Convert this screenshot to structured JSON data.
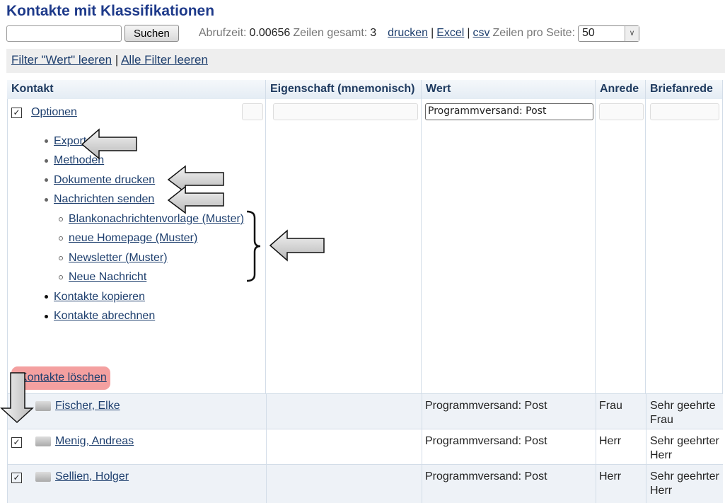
{
  "title": "Kontakte mit Klassifikationen",
  "toolbar": {
    "search_value": "",
    "search_button": "Suchen",
    "fetch_label": "Abrufzeit:",
    "fetch_value": "0.00656",
    "rows_label": "Zeilen gesamt:",
    "rows_value": "3",
    "print": "drucken",
    "excel": "Excel",
    "csv": "csv",
    "per_page_label": "Zeilen pro Seite:",
    "per_page_value": "50"
  },
  "filters": {
    "clear_value": "Filter \"Wert\" leeren",
    "sep": "|",
    "clear_all": "Alle Filter leeren"
  },
  "columns": [
    "Kontakt",
    "Eigenschaft (mnemonisch)",
    "Wert",
    "Anrede",
    "Briefanrede"
  ],
  "filter_inputs": {
    "wert": "Programmversand: Post"
  },
  "options": {
    "label": "Optionen",
    "items": [
      "Export",
      "Methoden",
      "Dokumente drucken",
      "Nachrichten senden"
    ],
    "sub_items": [
      "Blankonachrichtenvorlage (Muster)",
      "neue Homepage (Muster)",
      "Newsletter (Muster)",
      "Neue Nachricht"
    ],
    "items2": [
      "Kontakte kopieren",
      "Kontakte abrechnen"
    ],
    "delete": "Kontakte löschen"
  },
  "rows": [
    {
      "name": "Fischer, Elke",
      "wert": "Programmversand: Post",
      "anrede": "Frau",
      "brief1": "Sehr geehrte",
      "brief2": "Frau",
      "checked": false
    },
    {
      "name": "Menig, Andreas",
      "wert": "Programmversand: Post",
      "anrede": "Herr",
      "brief1": "Sehr geehrter",
      "brief2": "Herr",
      "checked": true
    },
    {
      "name": "Sellien, Holger",
      "wert": "Programmversand: Post",
      "anrede": "Herr",
      "brief1": "Sehr geehrter",
      "brief2": "Herr",
      "checked": true
    }
  ],
  "colors": {
    "title": "#1e3a8a",
    "delete_highlight": "#f4a0a0",
    "row_alt": "#eef2f7"
  }
}
